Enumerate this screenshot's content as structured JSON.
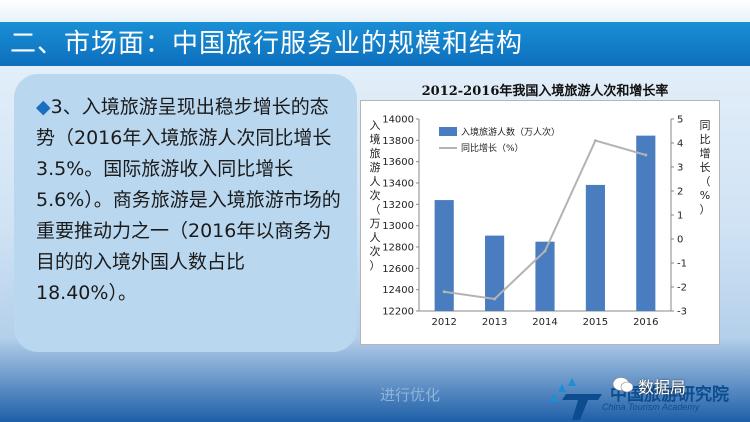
{
  "slide": {
    "title": "二、市场面：中国旅行服务业的规模和结构"
  },
  "panel": {
    "bullet": "◆",
    "text": "3、入境旅游呈现出稳步增长的态势（2016年入境旅游人次同比增长3.5%。国际旅游收入同比增长5.6%）。商务旅游是入境旅游市场的重要推动力之一（2016年以商务为目的的入境外国人数占比18.40%）。"
  },
  "chart_data": {
    "type": "bar",
    "title": "2012-2016年我国入境旅游人次和增长率",
    "categories": [
      "2012",
      "2013",
      "2014",
      "2015",
      "2016"
    ],
    "series": [
      {
        "name": "入境旅游人数（万人次）",
        "type": "bar",
        "axis": "left",
        "values": [
          13240,
          12907,
          12850,
          13382,
          13844
        ]
      },
      {
        "name": "同比增长（%）",
        "type": "line",
        "axis": "right",
        "values": [
          -2.2,
          -2.5,
          -0.5,
          4.1,
          3.5
        ]
      }
    ],
    "ylabel": "入境旅游人次（万人次）",
    "y2label": "同比增长（%）",
    "ylim": [
      12200,
      14000
    ],
    "yticks": [
      12200,
      12400,
      12600,
      12800,
      13000,
      13200,
      13400,
      13600,
      13800,
      14000
    ],
    "y2lim": [
      -3,
      5
    ],
    "y2ticks": [
      -3,
      -2,
      -1,
      0,
      1,
      2,
      3,
      4,
      5
    ],
    "colors": {
      "bar": "#4a7dbf",
      "line": "#b3b3b3"
    },
    "legend": "top-left"
  },
  "footer": {
    "watermark": "进行优化",
    "logo_cn": "中国旅游研究院",
    "logo_en": "China Tourism Academy",
    "wechat": "数据局"
  }
}
